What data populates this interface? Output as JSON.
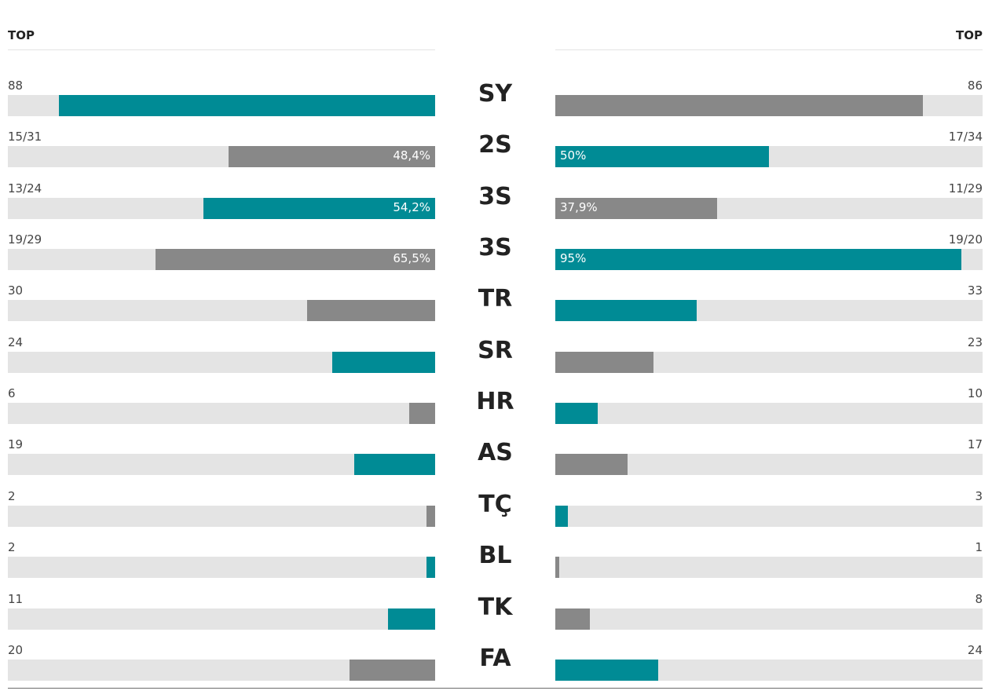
{
  "header": {
    "left_label": "TOP",
    "right_label": "TOP"
  },
  "colors": {
    "teal": "#008b95",
    "gray": "#888888",
    "track": "#e4e4e4"
  },
  "chart_data": {
    "type": "bar",
    "rows": [
      {
        "label": "SY",
        "left": {
          "text": "88",
          "fraction": 0.88,
          "pct": "",
          "color": "teal"
        },
        "right": {
          "text": "86",
          "fraction": 0.86,
          "pct": "",
          "color": "gray"
        }
      },
      {
        "label": "2S",
        "left": {
          "text": "15/31",
          "fraction": 0.484,
          "pct": "48,4%",
          "color": "gray"
        },
        "right": {
          "text": "17/34",
          "fraction": 0.5,
          "pct": "50%",
          "color": "teal"
        }
      },
      {
        "label": "3S",
        "left": {
          "text": "13/24",
          "fraction": 0.542,
          "pct": "54,2%",
          "color": "teal"
        },
        "right": {
          "text": "11/29",
          "fraction": 0.379,
          "pct": "37,9%",
          "color": "gray"
        }
      },
      {
        "label": "3S",
        "left": {
          "text": "19/29",
          "fraction": 0.655,
          "pct": "65,5%",
          "color": "gray"
        },
        "right": {
          "text": "19/20",
          "fraction": 0.95,
          "pct": "95%",
          "color": "teal"
        }
      },
      {
        "label": "TR",
        "left": {
          "text": "30",
          "fraction": 0.3,
          "pct": "",
          "color": "gray"
        },
        "right": {
          "text": "33",
          "fraction": 0.33,
          "pct": "",
          "color": "teal"
        }
      },
      {
        "label": "SR",
        "left": {
          "text": "24",
          "fraction": 0.24,
          "pct": "",
          "color": "teal"
        },
        "right": {
          "text": "23",
          "fraction": 0.23,
          "pct": "",
          "color": "gray"
        }
      },
      {
        "label": "HR",
        "left": {
          "text": "6",
          "fraction": 0.06,
          "pct": "",
          "color": "gray"
        },
        "right": {
          "text": "10",
          "fraction": 0.1,
          "pct": "",
          "color": "teal"
        }
      },
      {
        "label": "AS",
        "left": {
          "text": "19",
          "fraction": 0.19,
          "pct": "",
          "color": "teal"
        },
        "right": {
          "text": "17",
          "fraction": 0.17,
          "pct": "",
          "color": "gray"
        }
      },
      {
        "label": "TÇ",
        "left": {
          "text": "2",
          "fraction": 0.02,
          "pct": "",
          "color": "gray"
        },
        "right": {
          "text": "3",
          "fraction": 0.03,
          "pct": "",
          "color": "teal"
        }
      },
      {
        "label": "BL",
        "left": {
          "text": "2",
          "fraction": 0.02,
          "pct": "",
          "color": "teal"
        },
        "right": {
          "text": "1",
          "fraction": 0.01,
          "pct": "",
          "color": "gray"
        }
      },
      {
        "label": "TK",
        "left": {
          "text": "11",
          "fraction": 0.11,
          "pct": "",
          "color": "teal"
        },
        "right": {
          "text": "8",
          "fraction": 0.08,
          "pct": "",
          "color": "gray"
        }
      },
      {
        "label": "FA",
        "left": {
          "text": "20",
          "fraction": 0.2,
          "pct": "",
          "color": "gray"
        },
        "right": {
          "text": "24",
          "fraction": 0.24,
          "pct": "",
          "color": "teal"
        }
      }
    ]
  }
}
